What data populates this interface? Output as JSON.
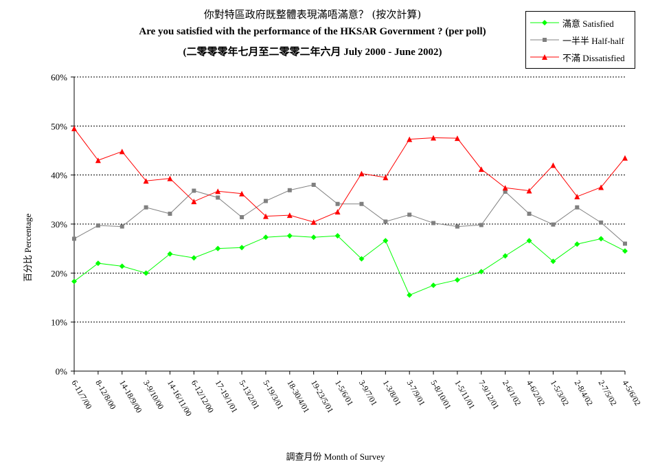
{
  "chart_data": {
    "type": "line",
    "title": "你對特區政府既整體表現滿唔滿意？ (按次計算)",
    "subtitle": "Are you satisfied with the performance of the HKSAR Government ? (per poll)",
    "subtitle2": "(二零零零年七月至二零零二年六月 July 2000 - June 2002)",
    "xlabel": "調查月份 Month of Survey",
    "ylabel": "百分比 Percentage",
    "ylim": [
      0,
      60
    ],
    "yticks": [
      "0%",
      "10%",
      "20%",
      "30%",
      "40%",
      "50%",
      "60%"
    ],
    "grid": true,
    "legend_position": "top-right",
    "categories": [
      "6-11/7/00",
      "8-12/8/00",
      "14-18/9/00",
      "3-9/10/00",
      "14-16/11/00",
      "6-12/12/00",
      "17-19/1/01",
      "5-13/2/01",
      "5-19/3/01",
      "18-30/4/01",
      "19-23/5/01",
      "1-5/6/01",
      "3-9/7/01",
      "1-3/8/01",
      "3-7/9/01",
      "5-8/10/01",
      "1-5/11/01",
      "7-9/12/01",
      "2-6/1/02",
      "4-6/2/02",
      "1-5/3/02",
      "2-8/4/02",
      "2-7/5/02",
      "4-5/6/02"
    ],
    "series": [
      {
        "name": "滿意 Satisfied",
        "color": "#00ff00",
        "marker": "diamond",
        "values": [
          18.3,
          22.0,
          21.4,
          20.0,
          23.9,
          23.1,
          25.0,
          25.2,
          27.3,
          27.6,
          27.3,
          27.6,
          22.9,
          26.6,
          15.5,
          17.5,
          18.6,
          20.3,
          23.5,
          26.6,
          22.4,
          25.9,
          27.0,
          24.5
        ]
      },
      {
        "name": "一半半 Half-half",
        "color": "#808080",
        "marker": "square",
        "values": [
          27.0,
          29.7,
          29.5,
          33.4,
          32.1,
          36.8,
          35.4,
          31.4,
          34.7,
          36.9,
          38.0,
          34.1,
          34.1,
          30.5,
          31.9,
          30.2,
          29.5,
          29.8,
          36.6,
          32.1,
          29.9,
          33.4,
          30.3,
          26.0
        ]
      },
      {
        "name": "不滿 Dissatisfied",
        "color": "#ff0000",
        "marker": "triangle",
        "values": [
          49.5,
          43.0,
          44.8,
          38.8,
          39.3,
          34.6,
          36.7,
          36.2,
          31.6,
          31.8,
          30.4,
          32.5,
          40.3,
          39.5,
          47.3,
          47.6,
          47.5,
          41.2,
          37.4,
          36.8,
          42.0,
          35.6,
          37.5,
          43.5
        ]
      }
    ]
  }
}
